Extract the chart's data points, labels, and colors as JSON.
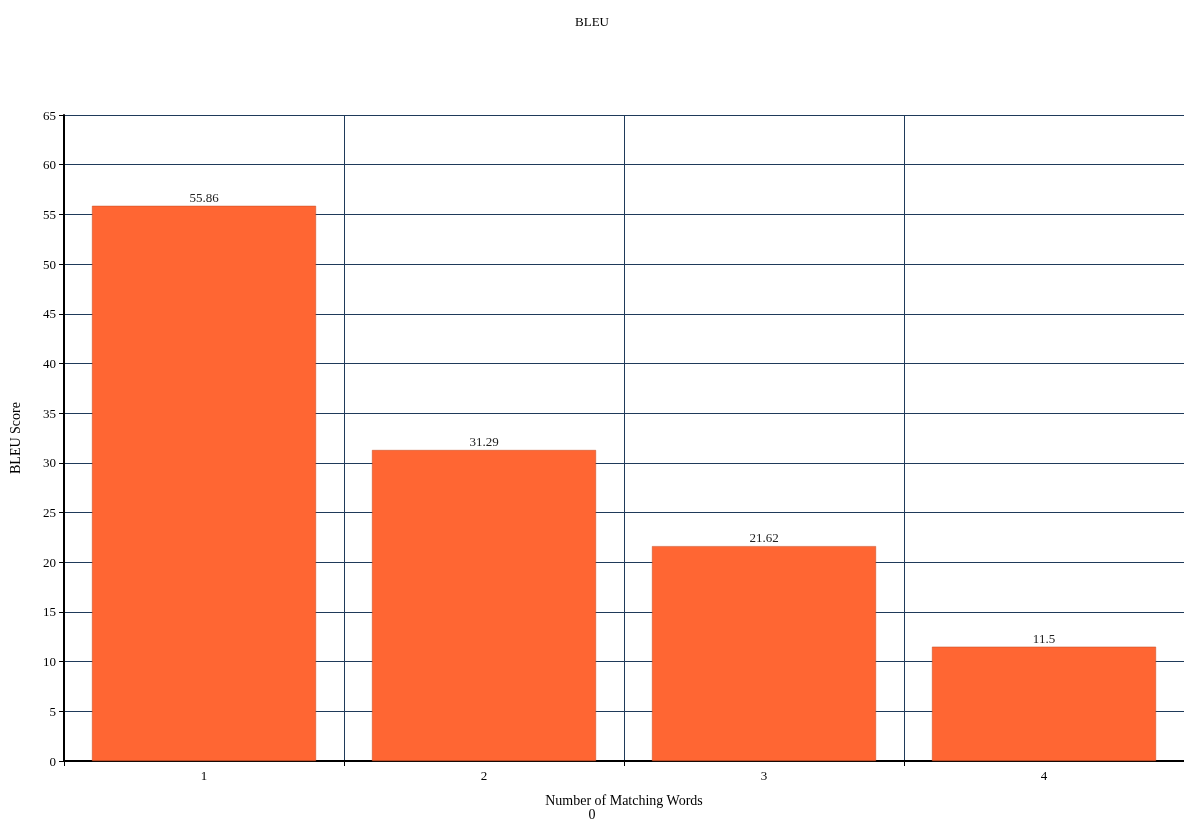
{
  "chart_data": {
    "type": "bar",
    "title": "BLEU",
    "xlabel": "Number of Matching Words",
    "ylabel": "BLEU Score",
    "categories": [
      "1",
      "2",
      "3",
      "4"
    ],
    "series": [
      {
        "color": "#ff6633",
        "values": [
          55.86,
          31.29,
          21.62,
          11.5
        ]
      }
    ],
    "ylim": [
      0,
      65
    ],
    "yticks": [
      0,
      5,
      10,
      15,
      20,
      25,
      30,
      35,
      40,
      45,
      50,
      55,
      60,
      65
    ],
    "grid": true,
    "data_labels": true,
    "annotations": [
      "0"
    ]
  }
}
